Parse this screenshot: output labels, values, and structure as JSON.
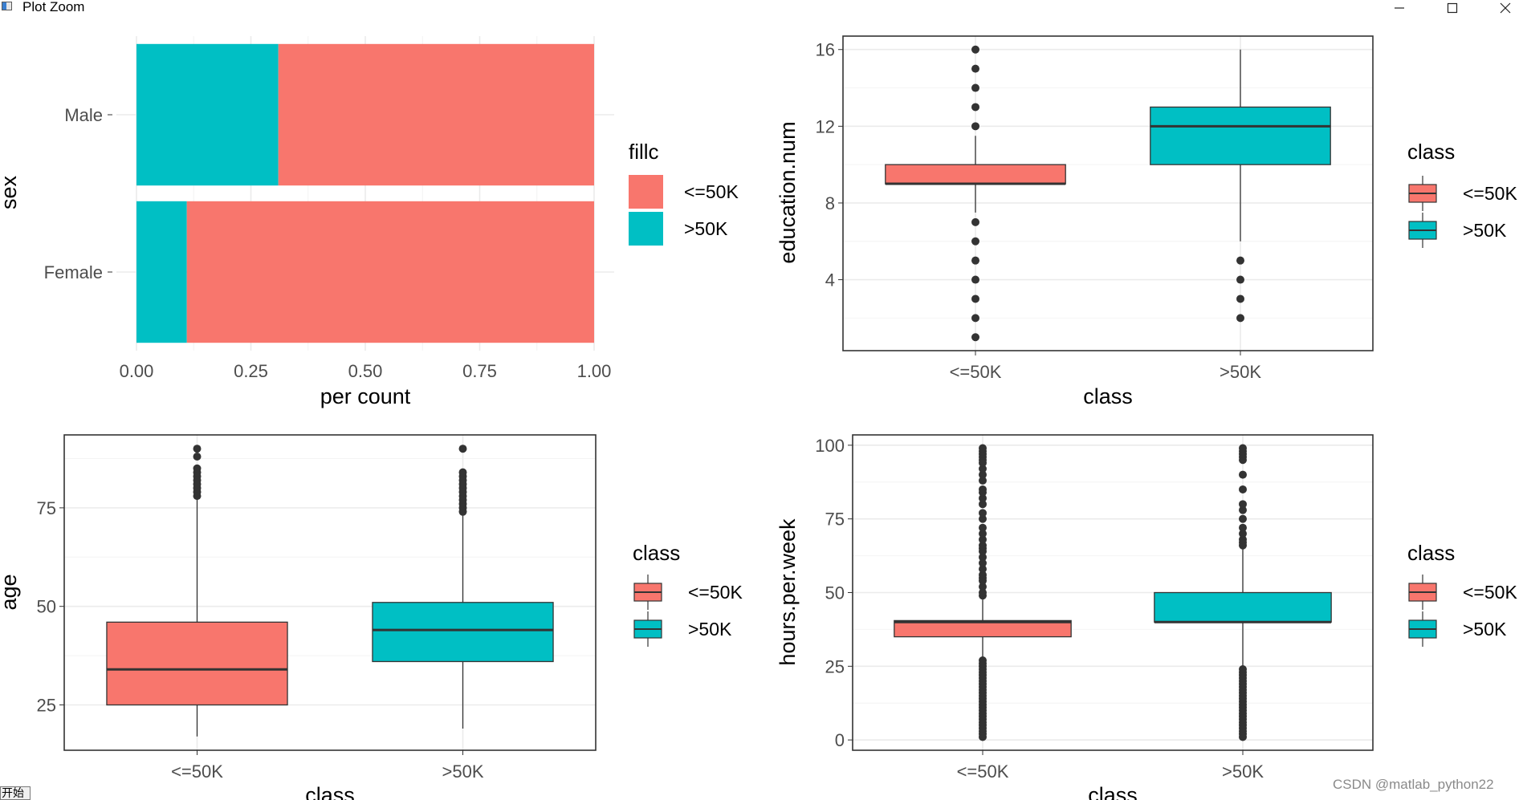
{
  "window": {
    "title": "Plot Zoom",
    "minimize_icon": "minimize-icon",
    "maximize_icon": "maximize-icon",
    "close_icon": "close-icon"
  },
  "taskbar": {
    "start_label": "开始"
  },
  "watermark": "CSDN @matlab_python22",
  "colors": {
    "low": "#F8766D",
    "high": "#00BFC4",
    "panel_border": "#333333",
    "grid": "#EBEBEB",
    "tick_text": "#4D4D4D"
  },
  "chart_data": [
    {
      "id": "sex-by-class",
      "type": "bar",
      "orientation": "horizontal",
      "stacked": "fill",
      "categories": [
        "Male",
        "Female"
      ],
      "series": [
        {
          "name": "<=50K",
          "values": [
            0.69,
            0.89
          ]
        },
        {
          "name": ">50K",
          "values": [
            0.31,
            0.11
          ]
        }
      ],
      "xlabel": "per count",
      "ylabel": "sex",
      "xlim": [
        0,
        1
      ],
      "xticks": [
        "0.00",
        "0.25",
        "0.50",
        "0.75",
        "1.00"
      ],
      "legend": {
        "title": "fillc",
        "entries": [
          "<=50K",
          ">50K"
        ],
        "placement": "right"
      }
    },
    {
      "id": "education-num-box",
      "type": "box",
      "categories": [
        "<=50K",
        ">50K"
      ],
      "boxes": [
        {
          "q1": 9,
          "median": 9,
          "q3": 10,
          "whisker_low": 7.5,
          "whisker_high": 11.5,
          "outliers": [
            1,
            2,
            3,
            4,
            5,
            6,
            7,
            12,
            13,
            14,
            15,
            16
          ]
        },
        {
          "q1": 10,
          "median": 12,
          "q3": 13,
          "whisker_low": 6,
          "whisker_high": 16,
          "outliers": [
            2,
            3,
            4,
            5
          ]
        }
      ],
      "xlabel": "class",
      "ylabel": "education.num",
      "ylim": [
        0.3,
        16.7
      ],
      "yticks": [
        "4",
        "8",
        "12",
        "16"
      ],
      "legend": {
        "title": "class",
        "entries": [
          "<=50K",
          ">50K"
        ],
        "placement": "right"
      }
    },
    {
      "id": "age-box",
      "type": "box",
      "categories": [
        "<=50K",
        ">50K"
      ],
      "boxes": [
        {
          "q1": 25,
          "median": 34,
          "q3": 46,
          "whisker_low": 17,
          "whisker_high": 77.5,
          "outliers": [
            78,
            79,
            80,
            81,
            82,
            83,
            84,
            85,
            88,
            90
          ]
        },
        {
          "q1": 36,
          "median": 44,
          "q3": 51,
          "whisker_low": 19,
          "whisker_high": 73.5,
          "outliers": [
            74,
            75,
            76,
            77,
            78,
            79,
            80,
            81,
            82,
            83,
            84,
            90
          ]
        }
      ],
      "xlabel": "class",
      "ylabel": "age",
      "ylim": [
        13.5,
        93.5
      ],
      "yticks": [
        "25",
        "50",
        "75"
      ],
      "legend": {
        "title": "class",
        "entries": [
          "<=50K",
          ">50K"
        ],
        "placement": "right"
      }
    },
    {
      "id": "hours-per-week-box",
      "type": "box",
      "categories": [
        "<=50K",
        ">50K"
      ],
      "boxes": [
        {
          "q1": 35,
          "median": 40,
          "q3": 40.5,
          "whisker_low": 28,
          "whisker_high": 48,
          "outliers": [
            1,
            2,
            3,
            4,
            5,
            6,
            7,
            8,
            9,
            10,
            11,
            12,
            13,
            14,
            15,
            16,
            17,
            18,
            19,
            20,
            21,
            22,
            23,
            24,
            25,
            26,
            27,
            49,
            50,
            52,
            54,
            55,
            56,
            58,
            60,
            62,
            64,
            65,
            66,
            68,
            70,
            72,
            75,
            77,
            80,
            82,
            84,
            85,
            88,
            90,
            92,
            94,
            95,
            96,
            97,
            98,
            99
          ]
        },
        {
          "q1": 40,
          "median": 40,
          "q3": 50,
          "whisker_low": 25,
          "whisker_high": 65,
          "outliers": [
            1,
            2,
            3,
            4,
            5,
            6,
            7,
            8,
            9,
            10,
            11,
            12,
            13,
            14,
            15,
            16,
            17,
            18,
            19,
            20,
            21,
            22,
            23,
            24,
            66,
            67,
            68,
            70,
            72,
            75,
            78,
            80,
            85,
            90,
            95,
            96,
            97,
            98,
            99
          ]
        }
      ],
      "xlabel": "class",
      "ylabel": "hours.per.week",
      "ylim": [
        -3.5,
        103.5
      ],
      "yticks": [
        "0",
        "25",
        "50",
        "75",
        "100"
      ],
      "legend": {
        "title": "class",
        "entries": [
          "<=50K",
          ">50K"
        ],
        "placement": "right"
      }
    }
  ]
}
